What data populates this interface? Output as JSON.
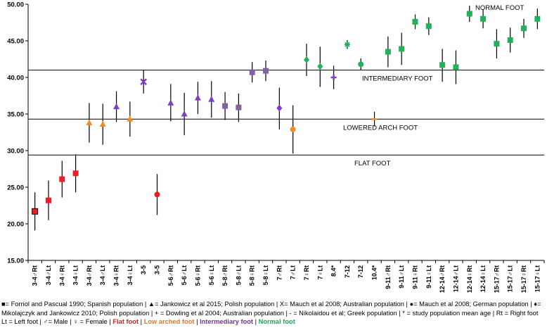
{
  "chart_data": {
    "type": "scatter",
    "title": "",
    "xlabel": "",
    "ylabel": "",
    "ylim": [
      15,
      50
    ],
    "yticks": [
      "15.00",
      "20.00",
      "25.00",
      "30.00",
      "35.00",
      "40.00",
      "45.00",
      "50.00"
    ],
    "thresholds": [
      {
        "value": 41.0,
        "label": "INTERMEDIARY FOOT"
      },
      {
        "value": 34.3,
        "label": "LOWERED ARCH FOOT"
      },
      {
        "value": 29.4,
        "label": "FLAT FOOT"
      }
    ],
    "top_label": "NORMAL FOOT",
    "colors": {
      "flat": "#ee1c25",
      "low": "#f28c28",
      "inter": "#7f3fbf",
      "normal": "#22b05b",
      "purple_square": "#8064a2"
    },
    "points": [
      {
        "label": "3-4♂Rt",
        "value": 21.7,
        "lo": 19.1,
        "hi": 24.3,
        "marker": "square",
        "color": "flat",
        "outline": true
      },
      {
        "label": "3-4♂Lt",
        "value": 23.2,
        "lo": 20.5,
        "hi": 25.9,
        "marker": "square",
        "color": "flat"
      },
      {
        "label": "3-4♀Rt",
        "value": 26.1,
        "lo": 23.6,
        "hi": 28.6,
        "marker": "square",
        "color": "flat"
      },
      {
        "label": "3-4♀Lt",
        "value": 26.9,
        "lo": 24.3,
        "hi": 29.5,
        "marker": "square",
        "color": "flat"
      },
      {
        "label": "3-4♂Rt",
        "value": 33.8,
        "lo": 31.1,
        "hi": 36.5,
        "marker": "triangle",
        "color": "low"
      },
      {
        "label": "3-4♂Lt",
        "value": 33.6,
        "lo": 30.8,
        "hi": 36.4,
        "marker": "triangle",
        "color": "low"
      },
      {
        "label": "3-4♀Rt",
        "value": 36.0,
        "lo": 33.9,
        "hi": 38.1,
        "marker": "triangle",
        "color": "inter"
      },
      {
        "label": "3-4♀Lt",
        "value": 34.3,
        "lo": 31.9,
        "hi": 36.7,
        "marker": "triangle",
        "color": "low"
      },
      {
        "label": "3-5",
        "value": 39.4,
        "lo": 37.8,
        "hi": 41.0,
        "marker": "x",
        "color": "inter"
      },
      {
        "label": "3-5",
        "value": 24.0,
        "lo": 21.2,
        "hi": 26.8,
        "marker": "circle",
        "color": "flat"
      },
      {
        "label": "5-6♂Rt",
        "value": 36.5,
        "lo": 34.0,
        "hi": 39.1,
        "marker": "triangle",
        "color": "inter"
      },
      {
        "label": "5-6♂Lt",
        "value": 35.0,
        "lo": 32.1,
        "hi": 37.9,
        "marker": "triangle",
        "color": "inter"
      },
      {
        "label": "5-6♀Rt",
        "value": 37.2,
        "lo": 35.0,
        "hi": 39.4,
        "marker": "triangle",
        "color": "inter"
      },
      {
        "label": "5-6♀Lt",
        "value": 37.0,
        "lo": 34.5,
        "hi": 39.5,
        "marker": "triangle",
        "color": "inter"
      },
      {
        "label": "5-8♂Rt",
        "value": 36.1,
        "lo": 34.2,
        "hi": 38.0,
        "marker": "square",
        "color": "purple_square"
      },
      {
        "label": "5-8♂Lt",
        "value": 35.9,
        "lo": 33.9,
        "hi": 37.8,
        "marker": "square",
        "color": "purple_square"
      },
      {
        "label": "5-8♀Rt",
        "value": 40.7,
        "lo": 39.3,
        "hi": 42.1,
        "marker": "square",
        "color": "purple_square"
      },
      {
        "label": "5-8♀Lt",
        "value": 40.9,
        "lo": 39.5,
        "hi": 42.3,
        "marker": "square",
        "color": "purple_square"
      },
      {
        "label": "7♂Rt",
        "value": 35.8,
        "lo": 32.9,
        "hi": 38.6,
        "marker": "diamond",
        "color": "inter"
      },
      {
        "label": "7♂Lt",
        "value": 32.9,
        "lo": 29.6,
        "hi": 36.2,
        "marker": "circle",
        "color": "low"
      },
      {
        "label": "7♀Rt",
        "value": 42.4,
        "lo": 40.2,
        "hi": 44.6,
        "marker": "diamond",
        "color": "normal"
      },
      {
        "label": "7♀Lt",
        "value": 41.5,
        "lo": 38.7,
        "hi": 44.2,
        "marker": "diamond",
        "color": "normal"
      },
      {
        "label": "8.4*",
        "value": 40.0,
        "lo": 38.4,
        "hi": 41.6,
        "marker": "plus",
        "color": "inter"
      },
      {
        "label": "7-12",
        "value": 44.5,
        "lo": 43.9,
        "hi": 45.1,
        "marker": "star",
        "color": "normal"
      },
      {
        "label": "7-12",
        "value": 41.8,
        "lo": 41.0,
        "hi": 42.6,
        "marker": "circle",
        "color": "normal"
      },
      {
        "label": "10.4*",
        "value": 34.3,
        "lo": 33.3,
        "hi": 35.3,
        "marker": "dash",
        "color": "low"
      },
      {
        "label": "9-11♂Rt",
        "value": 43.5,
        "lo": 41.4,
        "hi": 45.6,
        "marker": "square",
        "color": "normal"
      },
      {
        "label": "9-11♂Lt",
        "value": 43.9,
        "lo": 41.7,
        "hi": 46.1,
        "marker": "square",
        "color": "normal"
      },
      {
        "label": "9-11♀Rt",
        "value": 47.6,
        "lo": 46.6,
        "hi": 48.6,
        "marker": "square",
        "color": "normal"
      },
      {
        "label": "9-11♀Lt",
        "value": 47.0,
        "lo": 45.8,
        "hi": 48.2,
        "marker": "square",
        "color": "normal"
      },
      {
        "label": "12-14♂Rt",
        "value": 41.7,
        "lo": 39.4,
        "hi": 43.9,
        "marker": "square",
        "color": "normal"
      },
      {
        "label": "12-14♂Lt",
        "value": 41.4,
        "lo": 39.1,
        "hi": 43.7,
        "marker": "square",
        "color": "normal"
      },
      {
        "label": "12-14♀Rt",
        "value": 48.7,
        "lo": 47.6,
        "hi": 49.8,
        "marker": "square",
        "color": "normal"
      },
      {
        "label": "12-14♀Lt",
        "value": 48.0,
        "lo": 46.7,
        "hi": 49.3,
        "marker": "square",
        "color": "normal"
      },
      {
        "label": "15-17♂Rt",
        "value": 44.6,
        "lo": 42.6,
        "hi": 46.6,
        "marker": "square",
        "color": "normal"
      },
      {
        "label": "15-17♂Lt",
        "value": 45.1,
        "lo": 43.4,
        "hi": 46.8,
        "marker": "square",
        "color": "normal"
      },
      {
        "label": "15-17♀Rt",
        "value": 46.7,
        "lo": 45.4,
        "hi": 48.0,
        "marker": "square",
        "color": "normal"
      },
      {
        "label": "15-17♀Lt",
        "value": 48.0,
        "lo": 46.6,
        "hi": 49.4,
        "marker": "square",
        "color": "normal"
      }
    ]
  },
  "legend": {
    "main": "■= Forriol and Pascual 1990; Spanish population | ▲= Jankowicz et al 2015; Polish population | X= Mauch et al 2008; Australian population | ●= Mauch et al 2008; German population | ♦= Mikolajczyk and Jankowicz 2010; Polish population | + = Dowling et al 2004; Australian population | - = Nikolaidou et al; Greek population | * = study population mean age | Rt = Right foot Lt = Left foot | ♂= Male | ♀ = Female |",
    "flat": "Flat foot",
    "low": "Low arched foot",
    "inter": "Intermediary foot",
    "normal": "Normal foot",
    "sep": "|"
  }
}
